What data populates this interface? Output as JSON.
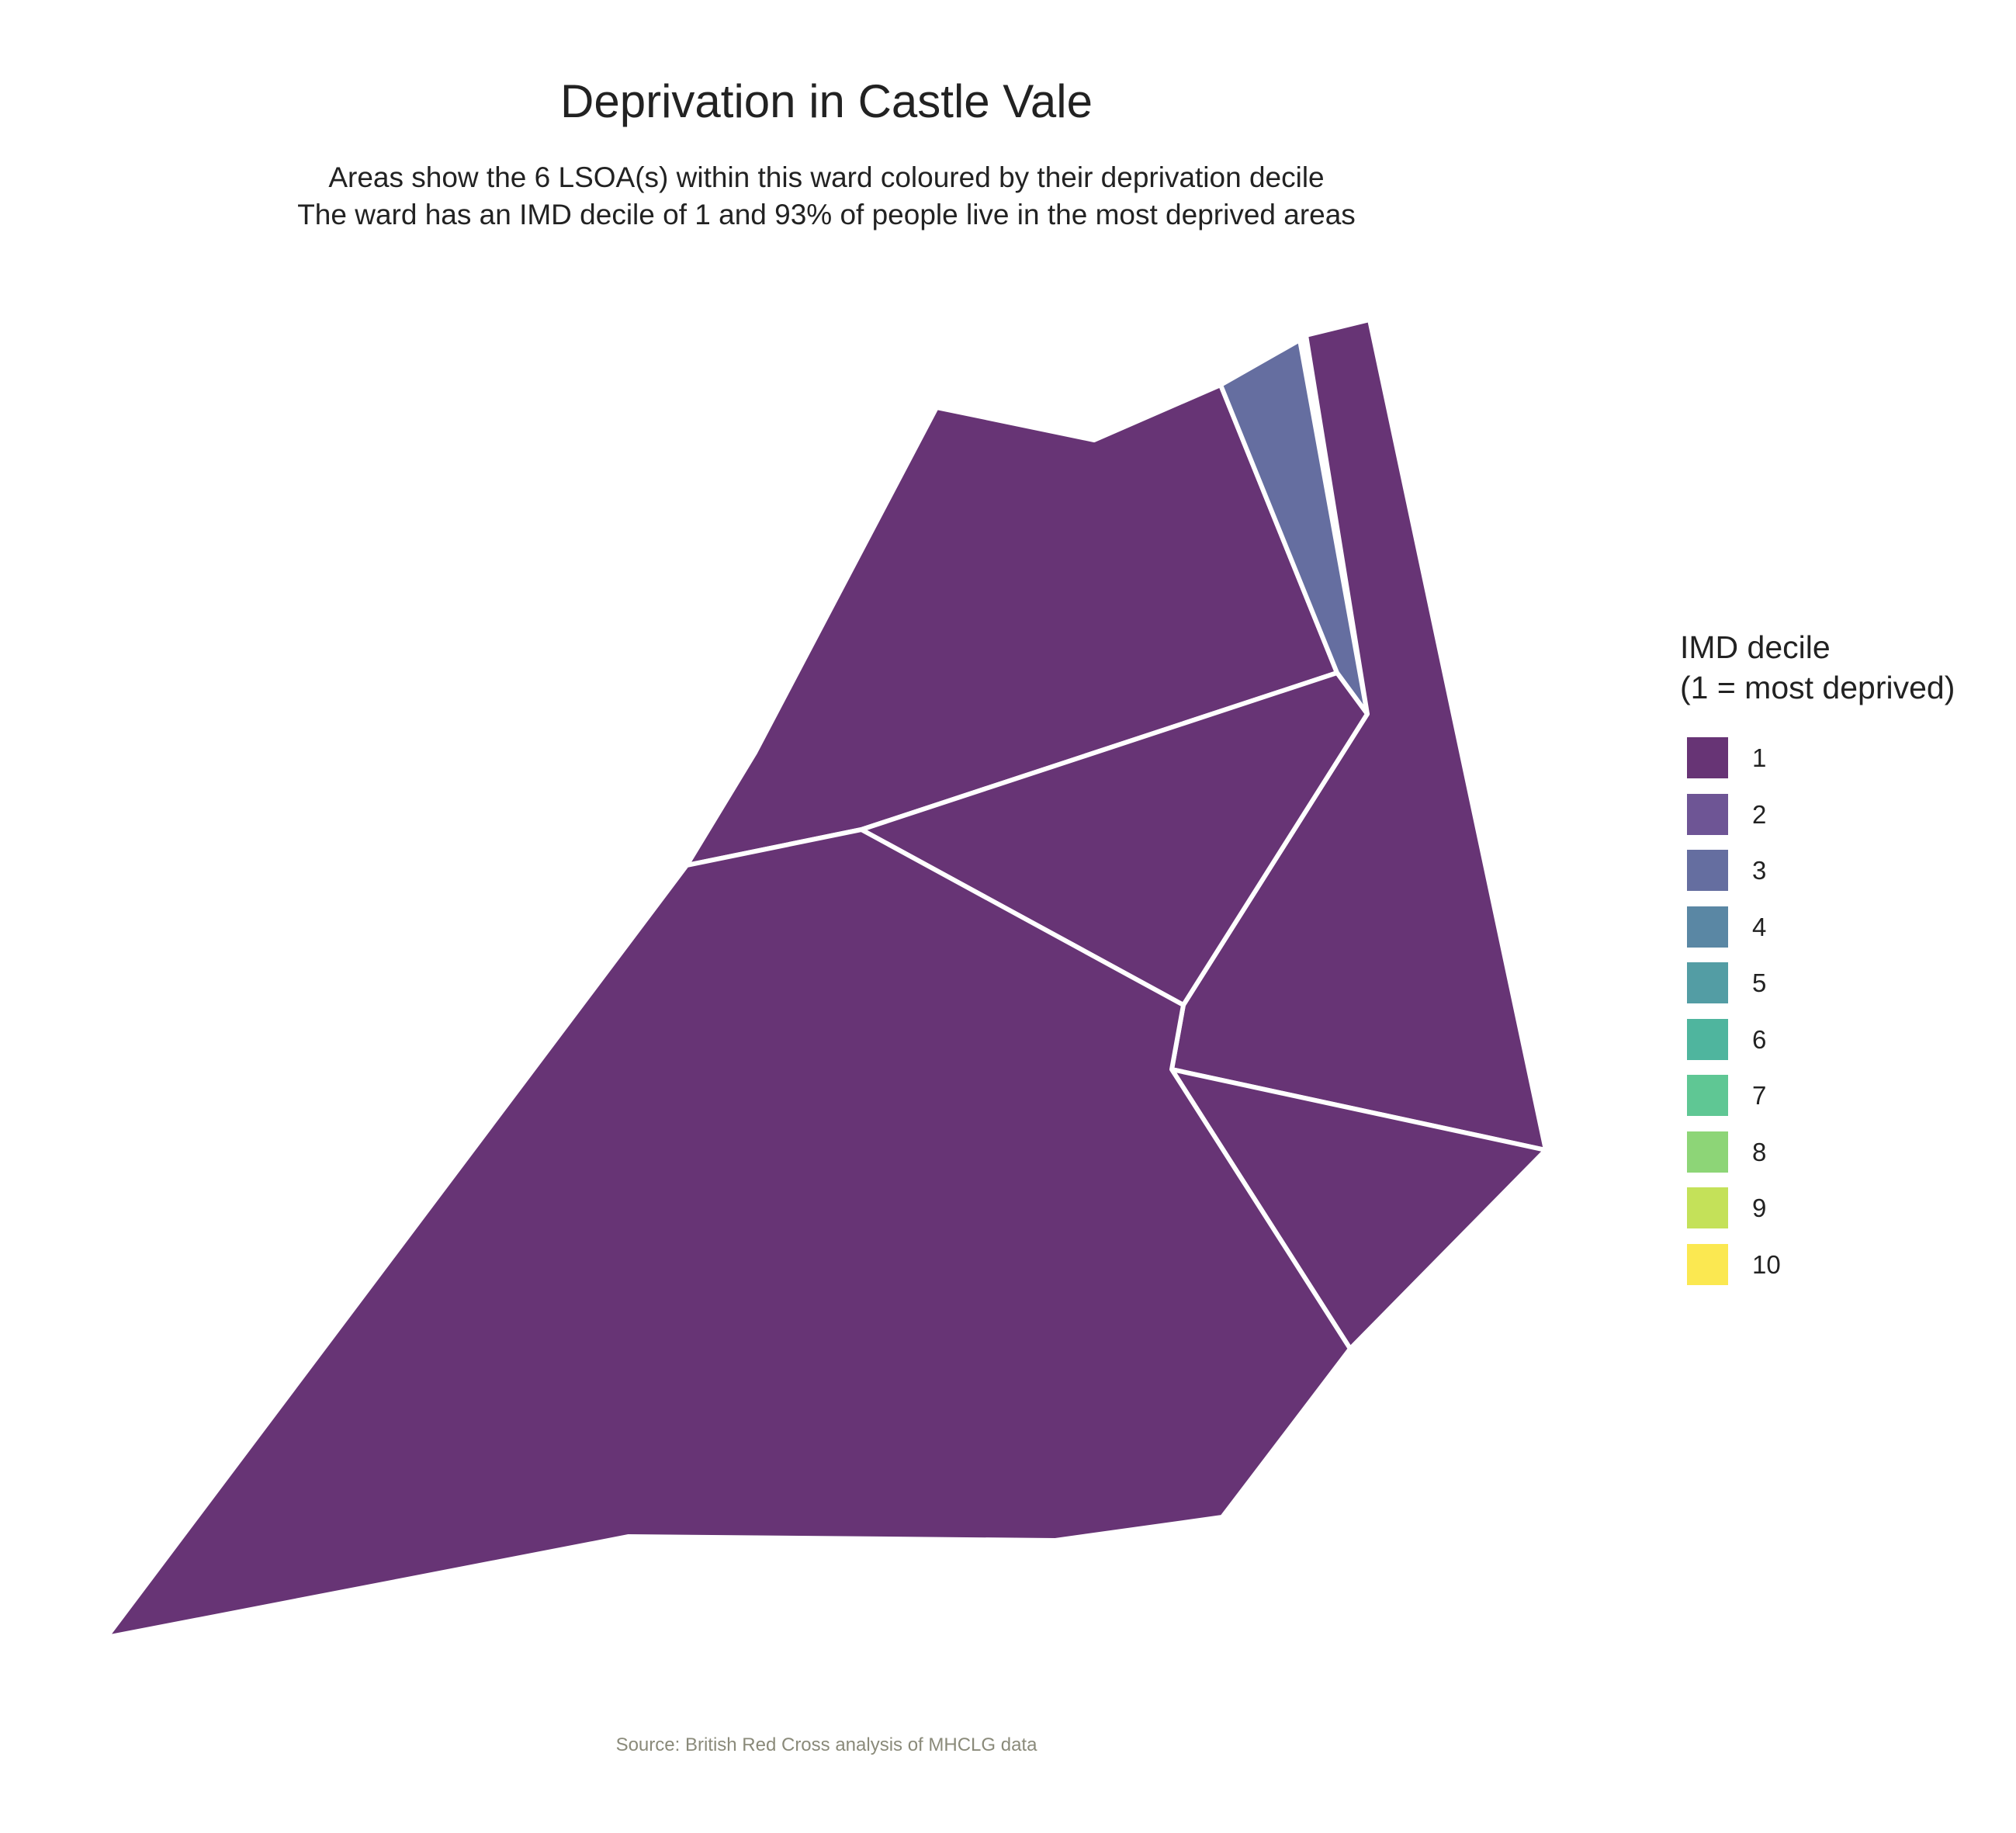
{
  "title": "Deprivation in Castle Vale",
  "subtitle": {
    "line1": "Areas show the 6 LSOA(s) within this ward coloured by their deprivation decile",
    "line2": "The ward has an IMD decile of 1 and 93% of people live in the most deprived areas"
  },
  "caption": "Source: British Red Cross analysis of MHCLG data",
  "legend": {
    "title_line1": "IMD decile",
    "title_line2": "(1 = most deprived)",
    "items": [
      {
        "label": "1",
        "color": "#673475"
      },
      {
        "label": "2",
        "color": "#6e5595"
      },
      {
        "label": "3",
        "color": "#656ea0"
      },
      {
        "label": "4",
        "color": "#5a87a4"
      },
      {
        "label": "5",
        "color": "#539da4"
      },
      {
        "label": "6",
        "color": "#4fb59e"
      },
      {
        "label": "7",
        "color": "#5fc794"
      },
      {
        "label": "8",
        "color": "#8dd577"
      },
      {
        "label": "9",
        "color": "#c4e159"
      },
      {
        "label": "10",
        "color": "#fbe851"
      }
    ]
  },
  "map": {
    "border_color": "#ffffff",
    "areas": [
      {
        "name": "lsoa-north-west",
        "decile": 1
      },
      {
        "name": "lsoa-north-narrow",
        "decile": 3
      },
      {
        "name": "lsoa-east-strip",
        "decile": 1
      },
      {
        "name": "lsoa-central",
        "decile": 1
      },
      {
        "name": "lsoa-south-east",
        "decile": 1
      },
      {
        "name": "lsoa-south-west",
        "decile": 1
      }
    ]
  }
}
